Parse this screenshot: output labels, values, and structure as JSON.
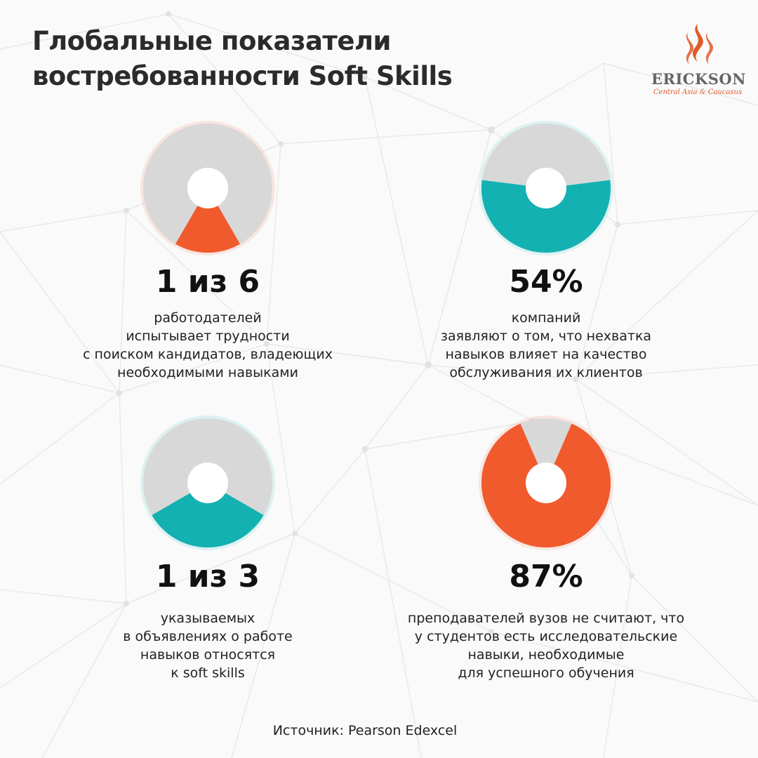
{
  "header": {
    "title_lines": [
      "Глобальные показатели",
      "востребованности Soft Skills"
    ]
  },
  "logo": {
    "name": "ERICKSON",
    "tagline": "Central Asia & Caucasus",
    "color": "#e05a2a"
  },
  "colors": {
    "gray": "#d8d8d8",
    "orange": "#f05a2c",
    "teal": "#13b1b1",
    "text": "#1c1c1c"
  },
  "chart_data": [
    {
      "type": "pie",
      "value_label": "1 из 6",
      "fraction": 0.1667,
      "highlight": "orange",
      "description": [
        "работодателей",
        "испытывает трудности",
        "с поиском кандидатов, владеющих",
        "необходимыми навыками"
      ]
    },
    {
      "type": "pie",
      "value_label": "54%",
      "fraction": 0.54,
      "highlight": "teal",
      "description": [
        "компаний",
        "заявляют о том, что нехватка",
        "навыков влияет на качество",
        "обслуживания их клиентов"
      ]
    },
    {
      "type": "pie",
      "value_label": "1 из 3",
      "fraction": 0.3333,
      "highlight": "teal",
      "description": [
        "указываемых",
        "в объявлениях о работе",
        "навыков относятся",
        "к soft skills"
      ]
    },
    {
      "type": "pie",
      "value_label": "87%",
      "fraction": 0.87,
      "highlight": "orange",
      "description": [
        "преподавателей вузов не считают, что",
        "у студентов есть исследовательские",
        "навыки, необходимые",
        "для успешного обучения"
      ]
    }
  ],
  "footer": {
    "source": "Источник: Pearson Edexcel"
  }
}
